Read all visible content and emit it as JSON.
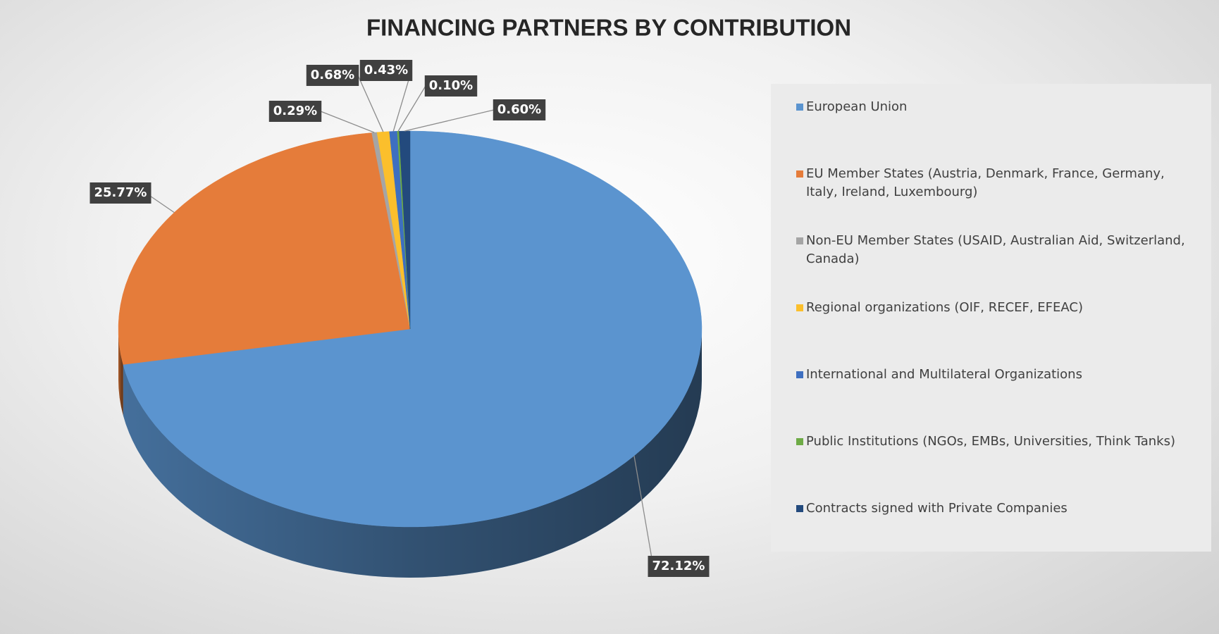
{
  "chart_data": {
    "type": "pie3d",
    "title": "FINANCING PARTNERS BY CONTRIBUTION",
    "categories": [
      "European Union",
      "EU Member States (Austria, Denmark, France, Germany, Italy, Ireland, Luxembourg)",
      "Non-EU Member States  (USAID, Australian Aid, Switzerland, Canada)",
      "Regional organizations (OIF, RECEF, EFEAC)",
      "International and Multilateral Organizations",
      "Public Institutions (NGOs, EMBs, Universities, Think Tanks)",
      "Contracts signed with Private Companies"
    ],
    "values": [
      72.12,
      25.77,
      0.29,
      0.68,
      0.43,
      0.1,
      0.6
    ],
    "value_labels": [
      "72.12%",
      "25.77%",
      "0.29%",
      "0.68%",
      "0.43%",
      "0.10%",
      "0.60%"
    ],
    "colors": [
      "#5b94cf",
      "#e57c3a",
      "#a5a5a5",
      "#fbbf2c",
      "#3e6fc0",
      "#6eab46",
      "#234a7d"
    ],
    "legend": "right"
  }
}
